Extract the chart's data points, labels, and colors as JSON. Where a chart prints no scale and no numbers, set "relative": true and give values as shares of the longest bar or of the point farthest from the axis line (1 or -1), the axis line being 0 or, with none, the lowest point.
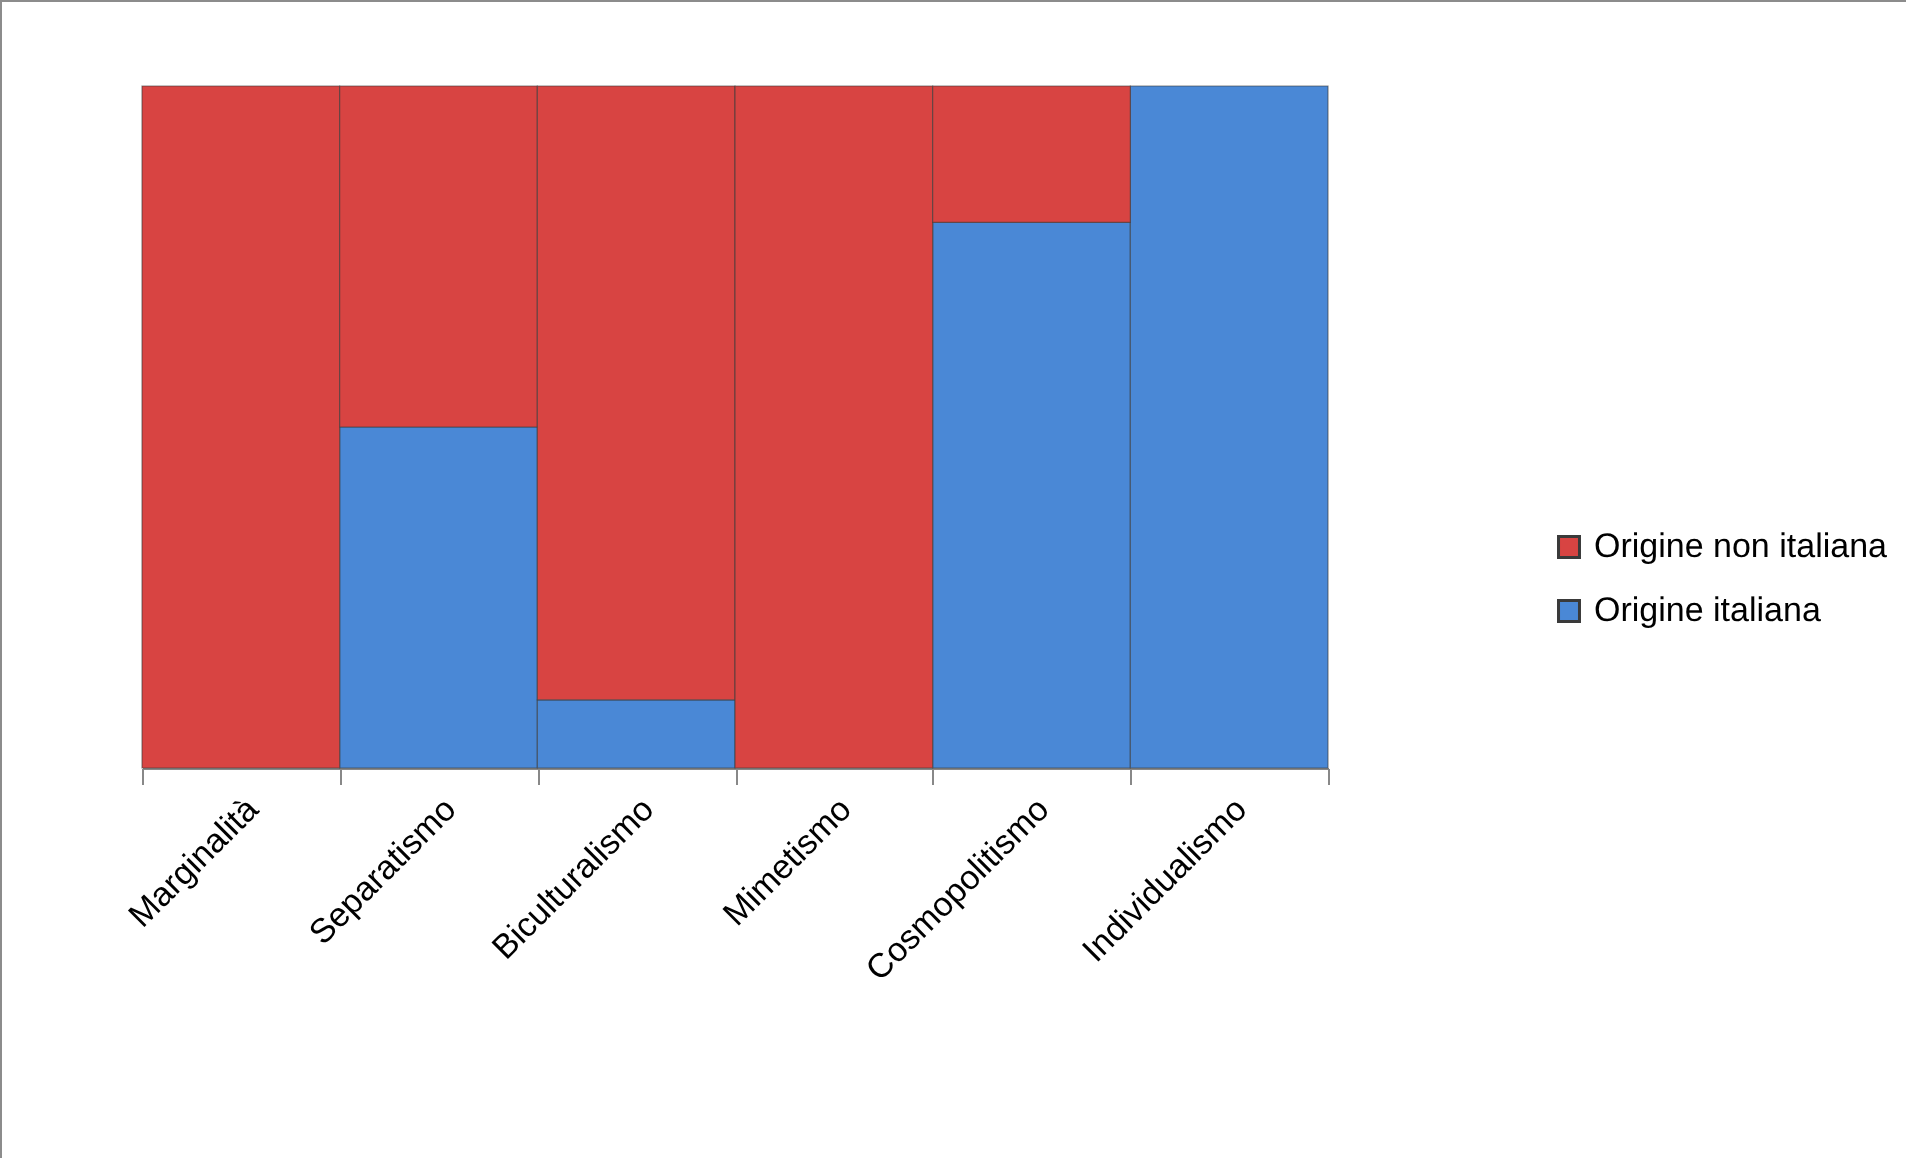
{
  "chart_data": {
    "type": "bar",
    "relative": true,
    "stacked": true,
    "legend": "right",
    "categories": [
      "Marginalità",
      "Separatismo",
      "Biculturalismo",
      "Mimetismo",
      "Cosmopolitismo",
      "Individualismo"
    ],
    "series": [
      {
        "name": "Origine italiana",
        "color": "#4a88d6",
        "values": [
          0,
          0.5,
          0.1,
          0,
          0.8,
          1
        ]
      },
      {
        "name": "Origine non italiana",
        "color": "#d84442",
        "values": [
          1,
          0.5,
          0.9,
          1,
          0.2,
          0
        ]
      }
    ]
  }
}
